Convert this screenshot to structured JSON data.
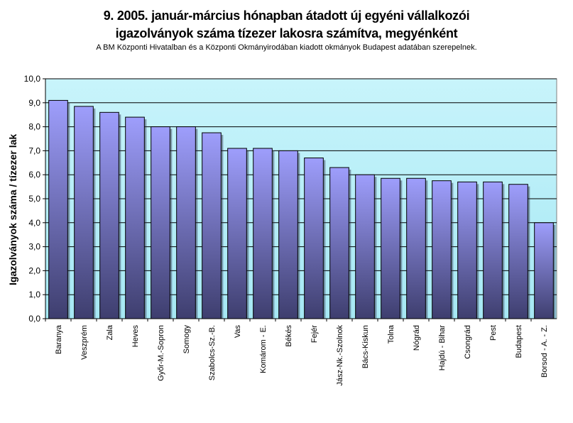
{
  "title_line1": "9.   2005. január-március hónapban átadott új egyéni vállalkozói",
  "title_line2": "igazolványok száma tízezer lakosra számítva, megyénként",
  "subtitle": "A BM Központi Hivatalban és a Központi Okmányirodában kiadott okmányok Budapest adatában szerepelnek.",
  "ylabel": "Igazolványok száma / tízezer lak",
  "colors": {
    "plot_bg_top": "#c8f4fb",
    "plot_bg_bottom": "#a6e8f4",
    "bar_top": "#9e9efc",
    "bar_bottom": "#3e3e6e"
  },
  "chart_data": {
    "type": "bar",
    "categories": [
      "Baranya",
      "Veszprém",
      "Zala",
      "Heves",
      "Győr-M.-Sopron",
      "Somogy",
      "Szabolcs-Sz.-B.",
      "Vas",
      "Komárom - E.",
      "Békés",
      "Fejér",
      "Jász-Nk.-Szolnok",
      "Bács-Kiskun",
      "Tolna",
      "Nógrád",
      "Hajdú - Bihar",
      "Csongrád",
      "Pest",
      "Budapest",
      "Borsod - A. - Z."
    ],
    "values": [
      9.1,
      8.85,
      8.6,
      8.4,
      8.0,
      8.0,
      7.75,
      7.1,
      7.1,
      7.0,
      6.7,
      6.3,
      6.0,
      5.85,
      5.85,
      5.75,
      5.7,
      5.7,
      5.6,
      4.0
    ],
    "yticks": [
      "0,0",
      "1,0",
      "2,0",
      "3,0",
      "4,0",
      "5,0",
      "6,0",
      "7,0",
      "8,0",
      "9,0",
      "10,0"
    ],
    "ylim": [
      0,
      10
    ],
    "grid": true
  }
}
